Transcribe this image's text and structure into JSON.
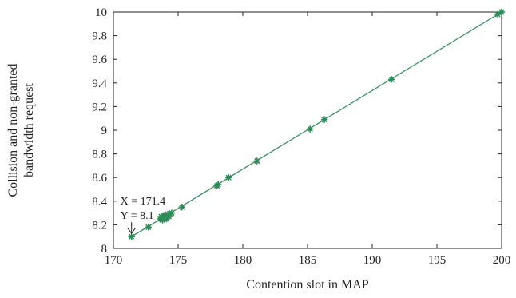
{
  "chart_data": {
    "type": "line",
    "xlabel": "Contention slot in MAP",
    "ylabel_lines": [
      "Collision and non-granted",
      "bandwidth request"
    ],
    "xlim": [
      170,
      200
    ],
    "ylim": [
      8,
      10
    ],
    "xticks": [
      "170",
      "175",
      "180",
      "185",
      "190",
      "195",
      "200"
    ],
    "yticks": [
      "8",
      "8.2",
      "8.4",
      "8.6",
      "8.8",
      "9",
      "9.2",
      "9.4",
      "9.6",
      "9.8",
      "10"
    ],
    "grid": false,
    "line_color": "#2e8b57",
    "series": [
      {
        "marker": "asterisk",
        "x": [
          171.4,
          172.7,
          173.6,
          173.7,
          173.8,
          173.9,
          174.0,
          174.1,
          174.2,
          174.3,
          174.5,
          175.3,
          178.0,
          178.1,
          178.9,
          181.1,
          185.2,
          186.3,
          191.5,
          199.7,
          200.0
        ],
        "y": [
          8.1,
          8.18,
          8.25,
          8.27,
          8.24,
          8.28,
          8.26,
          8.25,
          8.29,
          8.27,
          8.3,
          8.35,
          8.53,
          8.54,
          8.6,
          8.74,
          9.01,
          9.09,
          9.43,
          9.98,
          10.0
        ]
      }
    ],
    "annotation": {
      "x_text": "X = 171.4",
      "y_text": "Y = 8.1",
      "x": 171.4,
      "y": 8.1
    }
  }
}
